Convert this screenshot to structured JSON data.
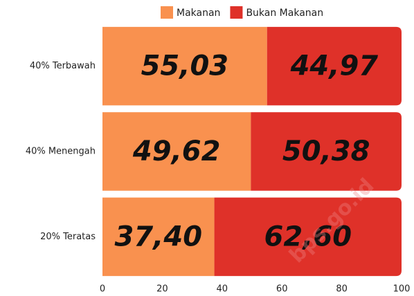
{
  "chart_data": {
    "type": "stacked_barh",
    "categories": [
      "40% Terbawah",
      "40% Menengah",
      "20% Teratas"
    ],
    "series": [
      {
        "name": "Makanan",
        "color": "#f9914f",
        "values": [
          55.03,
          49.62,
          37.4
        ],
        "value_labels": [
          "55,03",
          "49,62",
          "37,40"
        ]
      },
      {
        "name": "Bukan Makanan",
        "color": "#df3129",
        "values": [
          44.97,
          50.38,
          62.6
        ],
        "value_labels": [
          "44,97",
          "50,38",
          "62,60"
        ]
      }
    ],
    "xlim": [
      0,
      100
    ],
    "xticks": [
      0,
      20,
      40,
      60,
      80,
      100
    ],
    "legend": "top",
    "grid": false,
    "annotations": [
      "bps.go.id"
    ]
  }
}
